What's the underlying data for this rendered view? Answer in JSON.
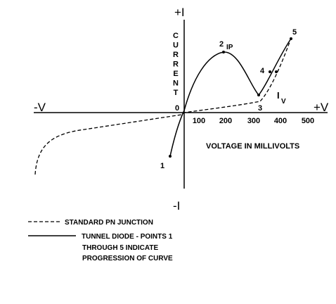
{
  "axes": {
    "plus_i": "+I",
    "minus_i": "-I",
    "minus_v": "-V",
    "plus_v": "+V",
    "y_label": [
      "C",
      "U",
      "R",
      "R",
      "E",
      "N",
      "T"
    ],
    "origin": "0",
    "x_ticks": [
      "100",
      "200",
      "300",
      "400",
      "500"
    ],
    "x_label": "VOLTAGE IN MILLIVOLTS"
  },
  "points": {
    "p1": "1",
    "p2": "2",
    "ip": "IP",
    "p3": "3",
    "p4": "4",
    "p5": "5",
    "iv_i": "I",
    "iv_v": "V"
  },
  "legend": {
    "dashed": "STANDARD PN JUNCTION",
    "solid_lines": [
      "TUNNEL DIODE - POINTS 1",
      "THROUGH 5 INDICATE",
      "PROGRESSION OF CURVE"
    ]
  }
}
